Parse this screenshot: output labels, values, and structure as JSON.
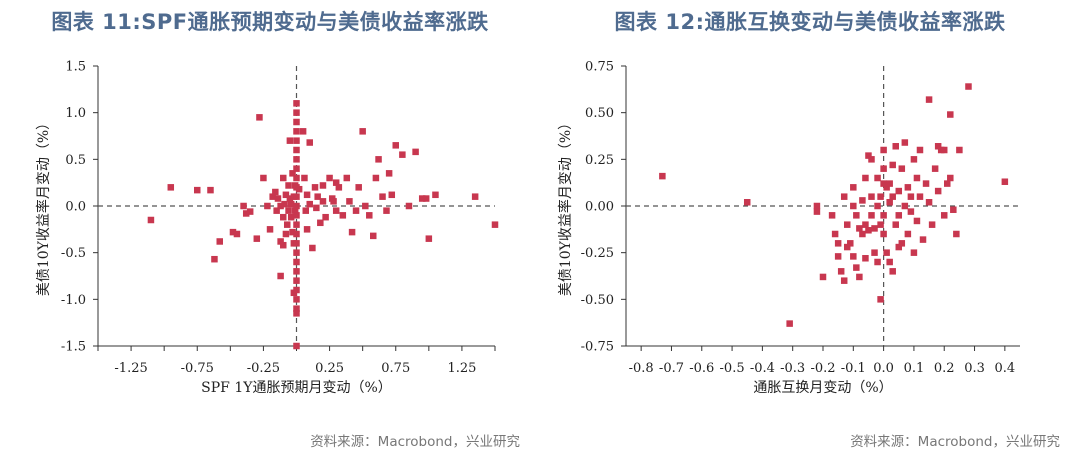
{
  "charts": [
    {
      "title": "图表 11:SPF通胀预期变动与美债收益率涨跌",
      "source": "资料来源：Macrobond，兴业研究",
      "xlabel": "SPF 1Y通胀预期月变动（%）",
      "ylabel": "美债10Y收益率月变动（%）",
      "xticks": [
        "-1.25",
        "-0.75",
        "-0.25",
        "0.25",
        "0.75",
        "1.25"
      ],
      "yticks": [
        "1.5",
        "1.0",
        "0.5",
        "0.0",
        "-0.5",
        "-1.0",
        "-1.5"
      ]
    },
    {
      "title": "图表 12:通胀互换变动与美债收益率涨跌",
      "source": "资料来源：Macrobond，兴业研究",
      "xlabel": "通胀互换月变动（%）",
      "ylabel": "美债10Y收益率月变动（%）",
      "xticks": [
        "-0.8",
        "-0.7",
        "-0.6",
        "-0.5",
        "-0.4",
        "-0.3",
        "-0.2",
        "-0.1",
        "0.0",
        "0.1",
        "0.2",
        "0.3",
        "0.4"
      ],
      "yticks": [
        "0.75",
        "0.50",
        "0.25",
        "0.00",
        "-0.25",
        "-0.50",
        "-0.75"
      ]
    }
  ],
  "marker_color": "#c8374f",
  "axis_color": "#333333",
  "title_color": "#4f6b8f",
  "chart_data": [
    {
      "type": "scatter",
      "title": "图表 11:SPF通胀预期变动与美债收益率涨跌",
      "xlabel": "SPF 1Y通胀预期月变动（%）",
      "ylabel": "美债10Y收益率月变动（%）",
      "xlim": [
        -1.5,
        1.5
      ],
      "ylim": [
        -1.5,
        1.5
      ],
      "grid": false,
      "reference_lines": {
        "x": 0,
        "y": 0
      },
      "points": [
        [
          -1.1,
          -0.15
        ],
        [
          -0.95,
          0.2
        ],
        [
          -0.75,
          0.17
        ],
        [
          -0.65,
          0.17
        ],
        [
          -0.62,
          -0.57
        ],
        [
          -0.58,
          -0.38
        ],
        [
          -0.48,
          -0.28
        ],
        [
          -0.45,
          -0.3
        ],
        [
          -0.4,
          0.0
        ],
        [
          -0.38,
          -0.08
        ],
        [
          -0.35,
          -0.06
        ],
        [
          -0.3,
          -0.35
        ],
        [
          -0.28,
          0.95
        ],
        [
          -0.25,
          0.3
        ],
        [
          -0.22,
          0.0
        ],
        [
          -0.2,
          -0.25
        ],
        [
          -0.18,
          0.1
        ],
        [
          -0.16,
          0.15
        ],
        [
          -0.15,
          -0.05
        ],
        [
          -0.14,
          0.08
        ],
        [
          -0.12,
          0.0
        ],
        [
          -0.12,
          -0.38
        ],
        [
          -0.1,
          0.3
        ],
        [
          -0.1,
          -0.42
        ],
        [
          -0.09,
          0.02
        ],
        [
          -0.08,
          0.12
        ],
        [
          -0.07,
          -0.2
        ],
        [
          -0.06,
          0.22
        ],
        [
          -0.06,
          -0.05
        ],
        [
          -0.05,
          0.08
        ],
        [
          -0.05,
          0.7
        ],
        [
          -0.04,
          -0.12
        ],
        [
          -0.04,
          0.02
        ],
        [
          -0.03,
          0.35
        ],
        [
          -0.03,
          -0.28
        ],
        [
          -0.02,
          0.1
        ],
        [
          -0.02,
          -0.4
        ],
        [
          -0.02,
          -0.93
        ],
        [
          -0.01,
          0.22
        ],
        [
          -0.01,
          -0.05
        ],
        [
          -0.12,
          -0.75
        ],
        [
          -0.1,
          -0.12
        ],
        [
          -0.08,
          -0.3
        ],
        [
          0.02,
          0.18
        ],
        [
          0.05,
          0.8
        ],
        [
          0.06,
          0.3
        ],
        [
          0.07,
          -0.05
        ],
        [
          0.08,
          0.12
        ],
        [
          0.08,
          -0.25
        ],
        [
          0.1,
          0.02
        ],
        [
          0.1,
          0.68
        ],
        [
          0.12,
          -0.45
        ],
        [
          0.14,
          0.2
        ],
        [
          0.15,
          -0.02
        ],
        [
          0.16,
          0.1
        ],
        [
          0.18,
          -0.18
        ],
        [
          0.2,
          0.22
        ],
        [
          0.2,
          0.05
        ],
        [
          0.22,
          -0.12
        ],
        [
          0.25,
          0.3
        ],
        [
          0.27,
          0.08
        ],
        [
          0.28,
          0.05
        ],
        [
          0.3,
          0.25
        ],
        [
          0.3,
          -0.05
        ],
        [
          0.32,
          0.2
        ],
        [
          0.35,
          -0.1
        ],
        [
          0.38,
          0.3
        ],
        [
          0.4,
          0.05
        ],
        [
          0.42,
          -0.28
        ],
        [
          0.45,
          -0.05
        ],
        [
          0.47,
          0.2
        ],
        [
          0.5,
          0.8
        ],
        [
          0.52,
          0.0
        ],
        [
          0.55,
          -0.1
        ],
        [
          0.58,
          -0.32
        ],
        [
          0.6,
          0.3
        ],
        [
          0.62,
          0.5
        ],
        [
          0.65,
          0.1
        ],
        [
          0.68,
          -0.05
        ],
        [
          0.7,
          0.35
        ],
        [
          0.72,
          0.12
        ],
        [
          0.75,
          0.65
        ],
        [
          0.8,
          0.55
        ],
        [
          0.85,
          0.0
        ],
        [
          0.9,
          0.58
        ],
        [
          0.95,
          0.08
        ],
        [
          0.98,
          0.08
        ],
        [
          1.0,
          -0.35
        ],
        [
          1.05,
          0.12
        ],
        [
          1.35,
          0.1
        ],
        [
          1.6,
          -0.2
        ],
        [
          0,
          1.1
        ],
        [
          0,
          1.0
        ],
        [
          0,
          0.9
        ],
        [
          0,
          0.8
        ],
        [
          0,
          0.7
        ],
        [
          0,
          0.6
        ],
        [
          0,
          0.5
        ],
        [
          0,
          0.4
        ],
        [
          0,
          0.3
        ],
        [
          0,
          0.2
        ],
        [
          0,
          0.1
        ],
        [
          0,
          0.0
        ],
        [
          0,
          -0.1
        ],
        [
          0,
          -0.2
        ],
        [
          0,
          -0.3
        ],
        [
          0,
          -0.4
        ],
        [
          0,
          -0.5
        ],
        [
          0,
          -0.6
        ],
        [
          0,
          -0.7
        ],
        [
          0,
          -0.8
        ],
        [
          0,
          -0.9
        ],
        [
          0,
          -1.0
        ],
        [
          0,
          -1.1
        ],
        [
          0,
          -1.15
        ],
        [
          0,
          -1.5
        ]
      ]
    },
    {
      "type": "scatter",
      "title": "图表 12:通胀互换变动与美债收益率涨跌",
      "xlabel": "通胀互换月变动（%）",
      "ylabel": "美债10Y收益率月变动（%）",
      "xlim": [
        -0.85,
        0.45
      ],
      "ylim": [
        -0.75,
        0.75
      ],
      "grid": false,
      "reference_lines": {
        "x": 0,
        "y": 0
      },
      "points": [
        [
          -0.73,
          0.16
        ],
        [
          -0.45,
          0.02
        ],
        [
          -0.31,
          -0.63
        ],
        [
          -0.22,
          0.0
        ],
        [
          -0.22,
          -0.03
        ],
        [
          -0.2,
          -0.38
        ],
        [
          -0.17,
          -0.05
        ],
        [
          -0.16,
          -0.15
        ],
        [
          -0.15,
          -0.27
        ],
        [
          -0.15,
          -0.2
        ],
        [
          -0.14,
          -0.35
        ],
        [
          -0.13,
          0.05
        ],
        [
          -0.13,
          -0.4
        ],
        [
          -0.12,
          -0.1
        ],
        [
          -0.11,
          -0.2
        ],
        [
          -0.1,
          0.0
        ],
        [
          -0.1,
          -0.27
        ],
        [
          -0.1,
          0.1
        ],
        [
          -0.09,
          -0.05
        ],
        [
          -0.09,
          -0.33
        ],
        [
          -0.08,
          -0.12
        ],
        [
          -0.08,
          -0.38
        ],
        [
          -0.07,
          0.03
        ],
        [
          -0.07,
          -0.15
        ],
        [
          -0.06,
          -0.1
        ],
        [
          -0.06,
          -0.28
        ],
        [
          -0.05,
          0.27
        ],
        [
          -0.05,
          -0.13
        ],
        [
          -0.04,
          0.05
        ],
        [
          -0.04,
          -0.05
        ],
        [
          -0.04,
          0.25
        ],
        [
          -0.03,
          -0.12
        ],
        [
          -0.03,
          -0.25
        ],
        [
          -0.02,
          0.15
        ],
        [
          -0.02,
          -0.3
        ],
        [
          -0.02,
          0.0
        ],
        [
          -0.01,
          0.05
        ],
        [
          -0.01,
          -0.1
        ],
        [
          -0.01,
          -0.5
        ],
        [
          0.0,
          0.3
        ],
        [
          0.0,
          0.2
        ],
        [
          0.0,
          -0.05
        ],
        [
          0.0,
          -0.15
        ],
        [
          0.01,
          0.1
        ],
        [
          0.01,
          -0.25
        ],
        [
          0.02,
          0.12
        ],
        [
          0.02,
          0.02
        ],
        [
          0.02,
          -0.3
        ],
        [
          0.03,
          0.22
        ],
        [
          0.03,
          0.05
        ],
        [
          0.04,
          -0.1
        ],
        [
          0.04,
          0.32
        ],
        [
          0.05,
          0.08
        ],
        [
          0.05,
          -0.05
        ],
        [
          0.06,
          -0.2
        ],
        [
          0.06,
          0.2
        ],
        [
          0.07,
          0.0
        ],
        [
          0.07,
          0.34
        ],
        [
          0.08,
          -0.15
        ],
        [
          0.08,
          0.1
        ],
        [
          0.09,
          0.05
        ],
        [
          0.09,
          -0.03
        ],
        [
          0.1,
          0.25
        ],
        [
          0.1,
          -0.25
        ],
        [
          0.11,
          0.15
        ],
        [
          0.11,
          -0.08
        ],
        [
          0.12,
          0.3
        ],
        [
          0.12,
          0.05
        ],
        [
          0.13,
          -0.18
        ],
        [
          0.14,
          0.12
        ],
        [
          0.15,
          0.57
        ],
        [
          0.15,
          0.02
        ],
        [
          0.16,
          -0.1
        ],
        [
          0.17,
          0.2
        ],
        [
          0.18,
          0.32
        ],
        [
          0.18,
          0.08
        ],
        [
          0.19,
          0.3
        ],
        [
          0.2,
          -0.05
        ],
        [
          0.2,
          0.3
        ],
        [
          0.21,
          0.12
        ],
        [
          0.22,
          0.49
        ],
        [
          0.22,
          0.15
        ],
        [
          0.23,
          -0.02
        ],
        [
          0.24,
          -0.15
        ],
        [
          0.25,
          0.3
        ],
        [
          0.28,
          0.64
        ],
        [
          0.4,
          0.13
        ],
        [
          0.0,
          0.12
        ],
        [
          -0.12,
          -0.22
        ],
        [
          0.03,
          -0.35
        ],
        [
          0.05,
          -0.22
        ],
        [
          -0.06,
          0.15
        ]
      ]
    }
  ]
}
